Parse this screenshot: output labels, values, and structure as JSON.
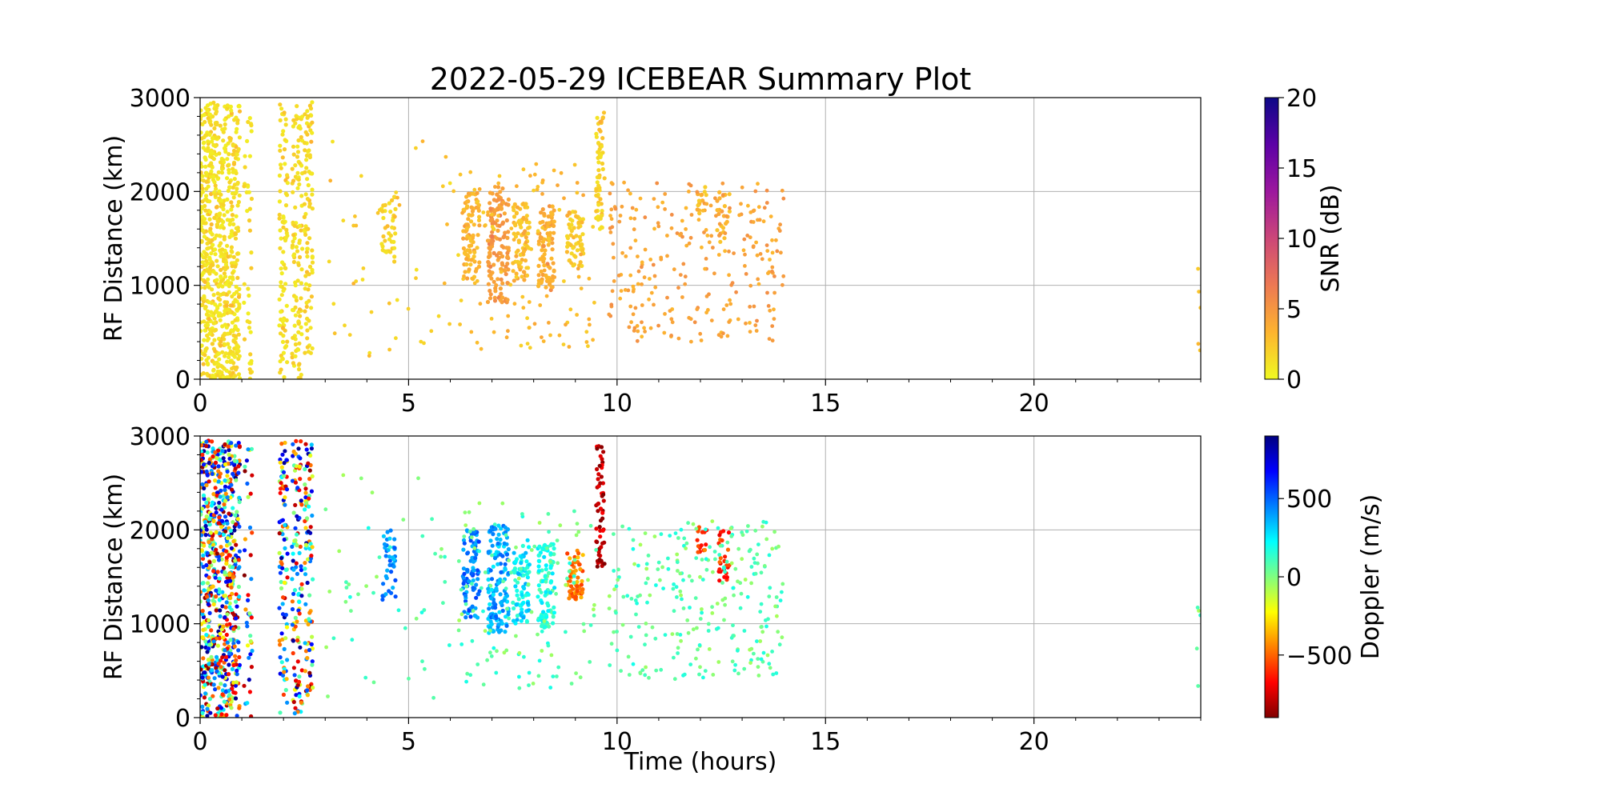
{
  "figure_title": "2022-05-29 ICEBEAR Summary Plot",
  "chart_data": [
    {
      "type": "scatter",
      "panel": "top",
      "title": "2022-05-29 ICEBEAR Summary Plot",
      "xlabel": "",
      "ylabel": "RF Distance (km)",
      "xlim": [
        0,
        24
      ],
      "ylim": [
        0,
        3000
      ],
      "x_ticks": [
        0,
        5,
        10,
        15,
        20
      ],
      "y_ticks": [
        0,
        1000,
        2000,
        3000
      ],
      "grid": true,
      "colorbar": {
        "label": "SNR (dB)",
        "range": [
          0,
          20
        ],
        "ticks": [
          0,
          5,
          10,
          15,
          20
        ],
        "colormap": "plasma_r",
        "stops": [
          "#f0f921",
          "#fdb42f",
          "#ed7953",
          "#cc4778",
          "#9c179e",
          "#5c01a6",
          "#0d0887"
        ]
      },
      "clusters": [
        {
          "t": [
            0.0,
            0.95
          ],
          "r": [
            0,
            2950
          ],
          "snr": 0.5,
          "n": 700
        },
        {
          "t": [
            1.05,
            1.25
          ],
          "r": [
            0,
            2950
          ],
          "snr": 0.5,
          "n": 40
        },
        {
          "t": [
            1.9,
            2.1
          ],
          "r": [
            0,
            2950
          ],
          "snr": 0.6,
          "n": 90
        },
        {
          "t": [
            2.2,
            2.45
          ],
          "r": [
            0,
            2950
          ],
          "snr": 0.6,
          "n": 110
        },
        {
          "t": [
            2.5,
            2.7
          ],
          "r": [
            200,
            2950
          ],
          "snr": 0.7,
          "n": 90
        },
        {
          "t": [
            4.35,
            4.7
          ],
          "r": [
            1250,
            2000
          ],
          "snr": 1.0,
          "n": 40
        },
        {
          "t": [
            6.3,
            6.7
          ],
          "r": [
            1050,
            2000
          ],
          "snr": 2.5,
          "n": 90
        },
        {
          "t": [
            6.9,
            7.4
          ],
          "r": [
            800,
            2050
          ],
          "snr": 4.0,
          "n": 140
        },
        {
          "t": [
            7.5,
            7.9
          ],
          "r": [
            1050,
            1900
          ],
          "snr": 2.0,
          "n": 80
        },
        {
          "t": [
            8.1,
            8.5
          ],
          "r": [
            950,
            1850
          ],
          "snr": 3.0,
          "n": 90
        },
        {
          "t": [
            8.8,
            9.2
          ],
          "r": [
            1200,
            1800
          ],
          "snr": 1.5,
          "n": 60
        },
        {
          "t": [
            9.5,
            9.7
          ],
          "r": [
            1600,
            2900
          ],
          "snr": 1.0,
          "n": 60
        },
        {
          "t": [
            11.9,
            12.15
          ],
          "r": [
            1750,
            2050
          ],
          "snr": 2.0,
          "n": 15
        },
        {
          "t": [
            12.4,
            12.7
          ],
          "r": [
            1450,
            2000
          ],
          "snr": 2.5,
          "n": 25
        }
      ],
      "scatter_regions": [
        {
          "t": [
            3.0,
            6.2
          ],
          "r": [
            200,
            2600
          ],
          "snr": 1.0,
          "n": 45
        },
        {
          "t": [
            6.2,
            9.5
          ],
          "r": [
            300,
            2300
          ],
          "snr": 1.8,
          "n": 120
        },
        {
          "t": [
            9.8,
            14.0
          ],
          "r": [
            400,
            2100
          ],
          "snr": 3.0,
          "n": 260
        },
        {
          "t": [
            23.9,
            24.0
          ],
          "r": [
            250,
            1250
          ],
          "snr": 1.5,
          "n": 5
        }
      ]
    },
    {
      "type": "scatter",
      "panel": "bottom",
      "xlabel": "Time (hours)",
      "ylabel": "RF Distance (km)",
      "xlim": [
        0,
        24
      ],
      "ylim": [
        0,
        3000
      ],
      "x_ticks": [
        0,
        5,
        10,
        15,
        20
      ],
      "y_ticks": [
        0,
        1000,
        2000,
        3000
      ],
      "grid": true,
      "colorbar": {
        "label": "Doppler (m/s)",
        "range": [
          -900,
          900
        ],
        "ticks": [
          -500,
          0,
          500
        ],
        "tick_labels": [
          "−500",
          "0",
          "500"
        ],
        "colormap": "jet_r",
        "stops": [
          "#800000",
          "#ff0000",
          "#ff8000",
          "#ffff00",
          "#80ff80",
          "#00ffff",
          "#0080ff",
          "#0000ff",
          "#000080"
        ]
      },
      "clusters": [
        {
          "t": [
            0.0,
            0.95
          ],
          "r": [
            0,
            2950
          ],
          "doppler": "mixed",
          "n": 700
        },
        {
          "t": [
            1.05,
            1.25
          ],
          "r": [
            0,
            2950
          ],
          "doppler": "mixed",
          "n": 40
        },
        {
          "t": [
            1.9,
            2.1
          ],
          "r": [
            0,
            2950
          ],
          "doppler": "mixed",
          "n": 90
        },
        {
          "t": [
            2.2,
            2.45
          ],
          "r": [
            0,
            2950
          ],
          "doppler": "mixed",
          "n": 110
        },
        {
          "t": [
            2.5,
            2.7
          ],
          "r": [
            200,
            2950
          ],
          "doppler": "mixed",
          "n": 90
        },
        {
          "t": [
            4.35,
            4.7
          ],
          "r": [
            1250,
            2000
          ],
          "doppler": 420,
          "n": 40
        },
        {
          "t": [
            6.3,
            6.7
          ],
          "r": [
            1050,
            2000
          ],
          "doppler": 450,
          "n": 90
        },
        {
          "t": [
            6.9,
            7.4
          ],
          "r": [
            900,
            2050
          ],
          "doppler": 380,
          "n": 140
        },
        {
          "t": [
            7.5,
            7.9
          ],
          "r": [
            1000,
            1900
          ],
          "doppler": 250,
          "n": 80
        },
        {
          "t": [
            8.1,
            8.5
          ],
          "r": [
            950,
            1850
          ],
          "doppler": 150,
          "n": 90
        },
        {
          "t": [
            8.8,
            9.2
          ],
          "r": [
            1250,
            1800
          ],
          "doppler": -450,
          "n": 60
        },
        {
          "t": [
            9.5,
            9.7
          ],
          "r": [
            1600,
            2900
          ],
          "doppler": -800,
          "n": 60
        },
        {
          "t": [
            11.9,
            12.15
          ],
          "r": [
            1750,
            2050
          ],
          "doppler": -550,
          "n": 15
        },
        {
          "t": [
            12.4,
            12.7
          ],
          "r": [
            1450,
            2000
          ],
          "doppler": -600,
          "n": 25
        }
      ],
      "scatter_regions": [
        {
          "t": [
            3.0,
            6.2
          ],
          "r": [
            200,
            2600
          ],
          "doppler": 60,
          "n": 45
        },
        {
          "t": [
            6.2,
            9.5
          ],
          "r": [
            300,
            2300
          ],
          "doppler": 60,
          "n": 120
        },
        {
          "t": [
            9.8,
            14.0
          ],
          "r": [
            400,
            2100
          ],
          "doppler": 60,
          "n": 260
        },
        {
          "t": [
            23.9,
            24.0
          ],
          "r": [
            250,
            1250
          ],
          "doppler": 60,
          "n": 5
        }
      ]
    }
  ]
}
